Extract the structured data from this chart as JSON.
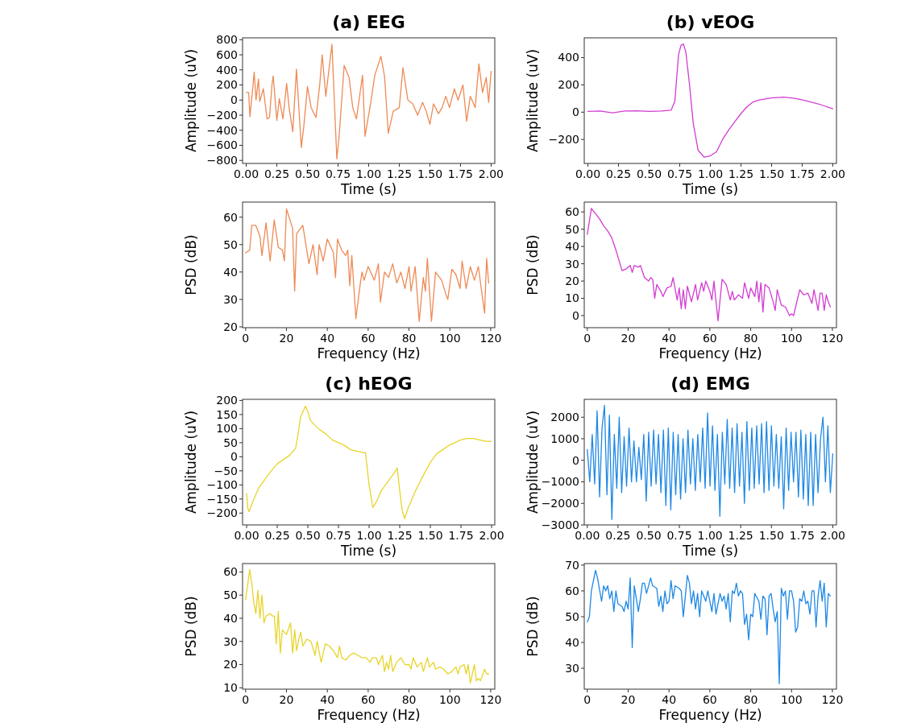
{
  "chart_data": [
    {
      "type": "line",
      "title": "(a) EEG",
      "xlabel": "Time (s)",
      "ylabel": "Amplitude (uV)",
      "xlim": [
        -0.03,
        2.03
      ],
      "ylim": [
        -840,
        825
      ],
      "xticks": [
        {
          "value": 0,
          "label": "0.00"
        },
        {
          "value": 0.25,
          "label": "0.25"
        },
        {
          "value": 0.5,
          "label": "0.50"
        },
        {
          "value": 0.75,
          "label": "0.75"
        },
        {
          "value": 1,
          "label": "1.00"
        },
        {
          "value": 1.25,
          "label": "1.25"
        },
        {
          "value": 1.5,
          "label": "1.50"
        },
        {
          "value": 1.75,
          "label": "1.75"
        },
        {
          "value": 2,
          "label": "2.00"
        }
      ],
      "yticks": [
        {
          "value": -800,
          "label": "−800"
        },
        {
          "value": -600,
          "label": "−600"
        },
        {
          "value": -400,
          "label": "−400"
        },
        {
          "value": -200,
          "label": "−200"
        },
        0,
        200,
        400,
        600,
        800
      ],
      "series": [
        {
          "color": "#ee8a55",
          "x": [
            0,
            0.02,
            0.03,
            0.05,
            0.065,
            0.08,
            0.1,
            0.11,
            0.14,
            0.17,
            0.19,
            0.21,
            0.22,
            0.25,
            0.27,
            0.3,
            0.33,
            0.35,
            0.38,
            0.41,
            0.45,
            0.47,
            0.5,
            0.53,
            0.57,
            0.6,
            0.62,
            0.65,
            0.7,
            0.74,
            0.76,
            0.8,
            0.84,
            0.87,
            0.9,
            0.95,
            0.97,
            1.02,
            1.05,
            1.1,
            1.13,
            1.16,
            1.2,
            1.25,
            1.28,
            1.32,
            1.36,
            1.4,
            1.44,
            1.47,
            1.5,
            1.53,
            1.57,
            1.6,
            1.63,
            1.66,
            1.7,
            1.73,
            1.77,
            1.8,
            1.83,
            1.87,
            1.9,
            1.93,
            1.96,
            1.98,
            2.0
          ],
          "values": [
            100,
            100,
            -220,
            100,
            370,
            0,
            280,
            -20,
            150,
            -250,
            -230,
            200,
            320,
            -270,
            20,
            -250,
            220,
            -100,
            -420,
            410,
            -630,
            -350,
            180,
            -100,
            -230,
            200,
            600,
            50,
            740,
            -780,
            -450,
            460,
            300,
            -100,
            -250,
            330,
            -480,
            0,
            330,
            580,
            310,
            -440,
            -150,
            -100,
            430,
            0,
            -50,
            -200,
            -30,
            -150,
            -320,
            -50,
            -180,
            -100,
            50,
            -100,
            150,
            0,
            200,
            -280,
            50,
            -100,
            480,
            100,
            300,
            -30,
            380
          ]
        }
      ]
    },
    {
      "type": "line",
      "xlabel": "Frequency (Hz)",
      "ylabel": "PSD (dB)",
      "xlim": [
        -1.5,
        122
      ],
      "ylim": [
        19.7,
        65.5
      ],
      "xticks": [
        0,
        20,
        40,
        60,
        80,
        100,
        120
      ],
      "yticks": [
        20,
        30,
        40,
        50,
        60
      ],
      "series": [
        {
          "color": "#ee8a55",
          "x": [
            0,
            2,
            3,
            5,
            7,
            8,
            10,
            12,
            14,
            16,
            18,
            19,
            20,
            23,
            24,
            25,
            28,
            31,
            33,
            35,
            36,
            38,
            40,
            43,
            44,
            45,
            47,
            49,
            50,
            51,
            52,
            54,
            56,
            57,
            58,
            60,
            63,
            65,
            66,
            68,
            70,
            72,
            74,
            76,
            78,
            80,
            81,
            83,
            85,
            87,
            88,
            89,
            91,
            93,
            96,
            98,
            99,
            101,
            103,
            105,
            106,
            108,
            110,
            112,
            114,
            115,
            117,
            118,
            119
          ],
          "values": [
            47,
            48,
            57,
            57,
            53,
            46,
            58,
            44,
            59,
            49,
            48,
            44,
            63,
            56,
            33,
            54,
            57,
            43,
            50,
            39,
            50,
            44,
            52,
            47,
            38,
            52,
            48,
            46,
            48,
            35,
            46,
            23,
            35,
            40,
            37,
            42,
            37,
            43,
            29,
            40,
            38,
            43,
            36,
            40,
            34,
            42,
            33,
            42,
            22,
            38,
            33,
            45,
            22,
            40,
            37,
            32,
            30,
            41,
            39,
            34,
            44,
            34,
            42,
            37,
            42,
            36,
            25,
            45,
            36
          ]
        }
      ]
    },
    {
      "type": "line",
      "title": "(b) vEOG",
      "xlabel": "Time (s)",
      "ylabel": "Amplitude (uV)",
      "xlim": [
        -0.03,
        2.03
      ],
      "ylim": [
        -376,
        545
      ],
      "xticks": [
        {
          "value": 0,
          "label": "0.00"
        },
        {
          "value": 0.25,
          "label": "0.25"
        },
        {
          "value": 0.5,
          "label": "0.50"
        },
        {
          "value": 0.75,
          "label": "0.75"
        },
        {
          "value": 1,
          "label": "1.00"
        },
        {
          "value": 1.25,
          "label": "1.25"
        },
        {
          "value": 1.5,
          "label": "1.50"
        },
        {
          "value": 1.75,
          "label": "1.75"
        },
        {
          "value": 2,
          "label": "2.00"
        }
      ],
      "yticks": [
        {
          "value": -200,
          "label": "−200"
        },
        0,
        200,
        400
      ],
      "series": [
        {
          "color": "#d23cd2",
          "x": [
            0,
            0.1,
            0.2,
            0.3,
            0.4,
            0.5,
            0.6,
            0.68,
            0.71,
            0.74,
            0.76,
            0.78,
            0.8,
            0.83,
            0.86,
            0.9,
            0.95,
            1.0,
            1.05,
            1.1,
            1.15,
            1.2,
            1.25,
            1.3,
            1.35,
            1.4,
            1.5,
            1.6,
            1.7,
            1.8,
            1.9,
            2.0
          ],
          "values": [
            5,
            8,
            -5,
            8,
            10,
            5,
            8,
            15,
            80,
            420,
            490,
            500,
            440,
            200,
            -80,
            -280,
            -330,
            -320,
            -290,
            -200,
            -130,
            -70,
            -10,
            40,
            75,
            90,
            105,
            110,
            100,
            80,
            55,
            25
          ]
        }
      ]
    },
    {
      "type": "line",
      "xlabel": "Frequency (Hz)",
      "ylabel": "PSD (dB)",
      "xlim": [
        -1.5,
        122
      ],
      "ylim": [
        -7,
        65.7
      ],
      "xticks": [
        0,
        20,
        40,
        60,
        80,
        100,
        120
      ],
      "yticks": [
        0,
        10,
        20,
        30,
        40,
        50,
        60
      ],
      "series": [
        {
          "color": "#d23cd2",
          "x": [
            0,
            2,
            4,
            6,
            8,
            10,
            12,
            14,
            16,
            17,
            19,
            21,
            22,
            23,
            25,
            26,
            28,
            30,
            31,
            32,
            33,
            34,
            36,
            37,
            39,
            41,
            42,
            44,
            45,
            46,
            47,
            48,
            49,
            51,
            53,
            54,
            56,
            57,
            58,
            60,
            61,
            62,
            64,
            66,
            68,
            70,
            71,
            72,
            74,
            76,
            77,
            79,
            80,
            82,
            83,
            84,
            85,
            86,
            87,
            89,
            91,
            92,
            93,
            95,
            97,
            99,
            100,
            101,
            103,
            104,
            106,
            108,
            110,
            111,
            113,
            114,
            115,
            116,
            117,
            118,
            119
          ],
          "values": [
            47,
            62,
            59,
            56,
            52,
            49,
            45,
            38,
            30,
            26,
            27,
            29,
            25,
            29,
            28,
            29,
            22,
            20,
            22,
            21,
            10,
            18,
            14,
            11,
            16,
            17,
            22,
            9,
            16,
            4,
            15,
            4,
            17,
            8,
            18,
            9,
            19,
            14,
            20,
            14,
            9,
            20,
            -3,
            21,
            18,
            9,
            14,
            9,
            12,
            10,
            19,
            10,
            16,
            11,
            20,
            8,
            19,
            2,
            18,
            16,
            8,
            3,
            15,
            6,
            5,
            0,
            1,
            0,
            10,
            15,
            12,
            13,
            7,
            15,
            3,
            13,
            13,
            3,
            12,
            8,
            5
          ]
        }
      ]
    },
    {
      "type": "line",
      "title": "(c) hEOG",
      "xlabel": "Time (s)",
      "ylabel": "Amplitude (uV)",
      "xlim": [
        -0.033,
        2.026
      ],
      "ylim": [
        -242,
        204
      ],
      "xticks": [
        {
          "value": 0,
          "label": "0.00"
        },
        {
          "value": 0.25,
          "label": "0.25"
        },
        {
          "value": 0.5,
          "label": "0.50"
        },
        {
          "value": 0.75,
          "label": "0.75"
        },
        {
          "value": 1,
          "label": "1.00"
        },
        {
          "value": 1.25,
          "label": "1.25"
        },
        {
          "value": 1.5,
          "label": "1.50"
        },
        {
          "value": 1.75,
          "label": "1.75"
        },
        {
          "value": 2,
          "label": "2.00"
        }
      ],
      "yticks": [
        {
          "value": -200,
          "label": "−200"
        },
        {
          "value": -150,
          "label": "−150"
        },
        {
          "value": -100,
          "label": "−100"
        },
        {
          "value": -50,
          "label": "−50"
        },
        0,
        50,
        100,
        150,
        200
      ],
      "series": [
        {
          "color": "#e8d42a",
          "x": [
            0,
            0.01,
            0.02,
            0.05,
            0.1,
            0.15,
            0.2,
            0.25,
            0.3,
            0.35,
            0.4,
            0.42,
            0.44,
            0.47,
            0.48,
            0.5,
            0.52,
            0.55,
            0.6,
            0.65,
            0.7,
            0.75,
            0.8,
            0.85,
            0.9,
            0.95,
            0.97,
            1.0,
            1.03,
            1.06,
            1.1,
            1.15,
            1.2,
            1.23,
            1.25,
            1.27,
            1.29,
            1.32,
            1.38,
            1.45,
            1.5,
            1.55,
            1.6,
            1.65,
            1.7,
            1.75,
            1.8,
            1.85,
            1.9,
            1.95,
            2.0
          ],
          "values": [
            -130,
            -185,
            -195,
            -160,
            -110,
            -80,
            -50,
            -25,
            -10,
            5,
            30,
            80,
            140,
            170,
            180,
            160,
            130,
            115,
            95,
            80,
            60,
            50,
            40,
            25,
            20,
            15,
            15,
            -100,
            -180,
            -160,
            -120,
            -90,
            -60,
            -40,
            -120,
            -190,
            -220,
            -180,
            -120,
            -60,
            -20,
            10,
            25,
            40,
            50,
            60,
            65,
            65,
            60,
            55,
            55
          ]
        }
      ]
    },
    {
      "type": "line",
      "xlabel": "Frequency (Hz)",
      "ylabel": "PSD (dB)",
      "xlim": [
        -1.5,
        122
      ],
      "ylim": [
        9.4,
        63.6
      ],
      "xticks": [
        0,
        20,
        40,
        60,
        80,
        100,
        120
      ],
      "yticks": [
        10,
        20,
        30,
        40,
        50,
        60
      ],
      "series": [
        {
          "color": "#e8d42a",
          "x": [
            0,
            2,
            3,
            4,
            5,
            6,
            7,
            8,
            9,
            10,
            12,
            13,
            14,
            15,
            16,
            17,
            18,
            20,
            22,
            23,
            24,
            25,
            26,
            27,
            28,
            30,
            32,
            34,
            35,
            37,
            39,
            41,
            43,
            45,
            46,
            47,
            49,
            51,
            53,
            55,
            57,
            59,
            61,
            62,
            64,
            65,
            67,
            68,
            69,
            70,
            71,
            72,
            74,
            76,
            78,
            80,
            81,
            82,
            84,
            86,
            87,
            89,
            90,
            92,
            93,
            95,
            97,
            99,
            101,
            103,
            104,
            105,
            107,
            108,
            109,
            110,
            112,
            113,
            114,
            115,
            117,
            118,
            119
          ],
          "values": [
            48,
            61,
            55,
            47,
            42,
            52,
            40,
            50,
            38,
            41,
            42,
            41,
            41,
            29,
            43,
            25,
            35,
            33,
            38,
            25,
            35,
            26,
            31,
            34,
            28,
            31,
            30,
            24,
            30,
            21,
            29,
            28,
            26,
            23,
            28,
            23,
            22,
            24,
            25,
            24,
            23,
            23,
            21,
            23,
            23,
            20,
            24,
            17,
            21,
            18,
            24,
            17,
            21,
            23,
            20,
            20,
            18,
            23,
            19,
            21,
            17,
            23,
            19,
            21,
            18,
            19,
            18,
            16,
            17,
            19,
            16,
            19,
            20,
            16,
            20,
            12,
            20,
            13,
            14,
            13,
            18,
            16,
            16
          ]
        }
      ]
    },
    {
      "type": "line",
      "title": "(d) EMG",
      "xlabel": "Time (s)",
      "ylabel": "Amplitude (uV)",
      "xlim": [
        -0.025,
        2.03
      ],
      "ylim": [
        -3000,
        2830
      ],
      "xticks": [
        {
          "value": 0,
          "label": "0.00"
        },
        {
          "value": 0.25,
          "label": "0.25"
        },
        {
          "value": 0.5,
          "label": "0.50"
        },
        {
          "value": 0.75,
          "label": "0.75"
        },
        {
          "value": 1,
          "label": "1.00"
        },
        {
          "value": 1.25,
          "label": "1.25"
        },
        {
          "value": 1.5,
          "label": "1.50"
        },
        {
          "value": 1.75,
          "label": "1.75"
        },
        {
          "value": 2,
          "label": "2.00"
        }
      ],
      "yticks": [
        {
          "value": -3000,
          "label": "−3000"
        },
        {
          "value": -2000,
          "label": "−2000"
        },
        {
          "value": -1000,
          "label": "−1000"
        },
        0,
        1000,
        2000
      ],
      "series": [
        {
          "color": "#1e88e5",
          "x": [
            0,
            0.02,
            0.04,
            0.06,
            0.08,
            0.1,
            0.12,
            0.14,
            0.16,
            0.18,
            0.2,
            0.22,
            0.24,
            0.26,
            0.28,
            0.3,
            0.32,
            0.34,
            0.36,
            0.38,
            0.4,
            0.42,
            0.44,
            0.46,
            0.48,
            0.5,
            0.52,
            0.54,
            0.56,
            0.58,
            0.6,
            0.62,
            0.64,
            0.66,
            0.68,
            0.7,
            0.72,
            0.74,
            0.76,
            0.78,
            0.8,
            0.82,
            0.84,
            0.86,
            0.88,
            0.9,
            0.92,
            0.94,
            0.96,
            0.98,
            1.0,
            1.02,
            1.04,
            1.06,
            1.08,
            1.1,
            1.12,
            1.14,
            1.16,
            1.18,
            1.2,
            1.22,
            1.24,
            1.26,
            1.28,
            1.3,
            1.32,
            1.34,
            1.36,
            1.38,
            1.4,
            1.42,
            1.44,
            1.46,
            1.48,
            1.5,
            1.52,
            1.54,
            1.56,
            1.58,
            1.6,
            1.62,
            1.64,
            1.66,
            1.68,
            1.7,
            1.72,
            1.74,
            1.76,
            1.78,
            1.8,
            1.82,
            1.84,
            1.86,
            1.88,
            1.9,
            1.92,
            1.94,
            1.96,
            1.98,
            2.0
          ],
          "values": [
            500,
            -1000,
            1200,
            -1100,
            2300,
            -1700,
            1500,
            2550,
            -1600,
            2100,
            -2750,
            1200,
            -1300,
            2000,
            -1500,
            1100,
            -1200,
            1500,
            -1000,
            900,
            -1000,
            600,
            -900,
            1200,
            -1900,
            1300,
            -1200,
            1400,
            -1100,
            1200,
            -1500,
            1400,
            -2100,
            1500,
            -2300,
            1300,
            -1600,
            1200,
            -1800,
            1000,
            -1500,
            1400,
            -1100,
            1000,
            -1400,
            1200,
            -1000,
            1500,
            -1300,
            2200,
            -1200,
            1600,
            -1400,
            1200,
            -2600,
            1300,
            -1100,
            1900,
            -1300,
            1500,
            -1500,
            1700,
            -1200,
            1300,
            -2000,
            1800,
            -1400,
            1500,
            -1300,
            1600,
            -1100,
            1700,
            -1500,
            1800,
            -1400,
            1600,
            -1200,
            1200,
            -1300,
            1100,
            -2250,
            1500,
            -1400,
            1300,
            -1000,
            1300,
            -1700,
            1400,
            -1800,
            1200,
            -2100,
            1300,
            -2100,
            1200,
            -1500,
            1000,
            2000,
            -1000,
            1600,
            -1500,
            300
          ]
        }
      ]
    },
    {
      "type": "line",
      "xlabel": "Frequency (Hz)",
      "ylabel": "PSD (dB)",
      "xlim": [
        -1.5,
        122
      ],
      "ylim": [
        21.9,
        70.6
      ],
      "xticks": [
        0,
        20,
        40,
        60,
        80,
        100,
        120
      ],
      "yticks": [
        30,
        40,
        50,
        60,
        70
      ],
      "series": [
        {
          "color": "#1e88e5",
          "x": [
            0,
            1,
            2,
            4,
            5,
            7,
            8,
            9,
            10,
            11,
            12,
            13,
            14,
            15,
            17,
            18,
            19,
            20,
            21,
            22,
            23,
            25,
            26,
            27,
            28,
            29,
            30,
            31,
            32,
            34,
            35,
            36,
            37,
            38,
            39,
            40,
            41,
            42,
            43,
            45,
            46,
            47,
            48,
            49,
            50,
            51,
            52,
            53,
            54,
            55,
            56,
            57,
            58,
            59,
            61,
            62,
            63,
            65,
            66,
            67,
            68,
            69,
            70,
            71,
            72,
            73,
            74,
            75,
            76,
            77,
            78,
            79,
            80,
            81,
            82,
            84,
            85,
            86,
            87,
            88,
            89,
            90,
            91,
            92,
            93,
            94,
            95,
            96,
            97,
            98,
            99,
            100,
            101,
            102,
            103,
            104,
            105,
            106,
            107,
            108,
            109,
            110,
            111,
            112,
            113,
            114,
            115,
            116,
            117,
            118,
            119
          ],
          "values": [
            48,
            50,
            60,
            68,
            65,
            56,
            62,
            60,
            62,
            57,
            60,
            52,
            60,
            55,
            54,
            52,
            56,
            53,
            65,
            38,
            62,
            52,
            57,
            63,
            63,
            59,
            62,
            65,
            62,
            61,
            54,
            58,
            52,
            60,
            55,
            56,
            64,
            57,
            62,
            61,
            60,
            50,
            58,
            66,
            63,
            55,
            60,
            53,
            59,
            50,
            60,
            58,
            56,
            60,
            52,
            59,
            51,
            59,
            56,
            58,
            53,
            59,
            48,
            60,
            59,
            63,
            58,
            60,
            59,
            47,
            51,
            41,
            51,
            50,
            59,
            56,
            49,
            58,
            57,
            43,
            58,
            59,
            53,
            48,
            52,
            24,
            61,
            58,
            60,
            49,
            60,
            60,
            56,
            44,
            46,
            57,
            56,
            60,
            55,
            56,
            51,
            60,
            60,
            46,
            58,
            64,
            56,
            63,
            46,
            59,
            58
          ]
        }
      ]
    }
  ]
}
